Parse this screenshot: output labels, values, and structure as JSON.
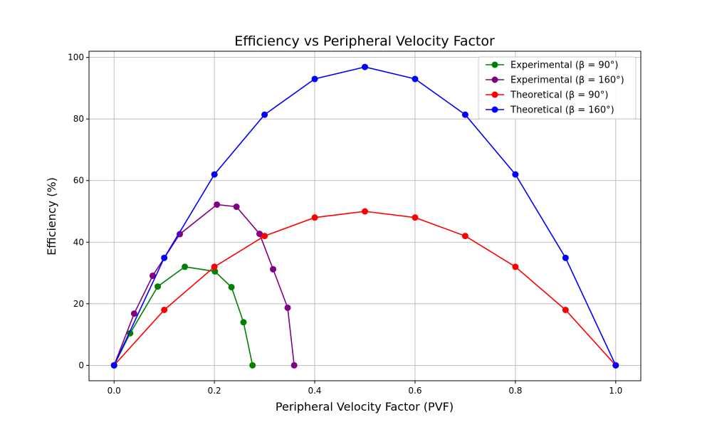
{
  "chart_data": {
    "type": "line",
    "title": "Efficiency vs Peripheral Velocity Factor",
    "xlabel": "Peripheral Velocity Factor (PVF)",
    "ylabel": "Efficiency (%)",
    "xlim": [
      -0.05,
      1.05
    ],
    "ylim": [
      -5,
      102
    ],
    "xticks": [
      0.0,
      0.2,
      0.4,
      0.6,
      0.8,
      1.0
    ],
    "xtick_labels": [
      "0.0",
      "0.2",
      "0.4",
      "0.6",
      "0.8",
      "1.0"
    ],
    "yticks": [
      0,
      20,
      40,
      60,
      80,
      100
    ],
    "ytick_labels": [
      "0",
      "20",
      "40",
      "60",
      "80",
      "100"
    ],
    "grid": true,
    "legend_position": "top-right",
    "series": [
      {
        "name": "Experimental (β = 90°)",
        "color": "#008000",
        "x": [
          0.0,
          0.032,
          0.087,
          0.141,
          0.201,
          0.234,
          0.258,
          0.276
        ],
        "y": [
          0.0,
          10.4,
          25.6,
          32.0,
          30.5,
          25.4,
          14.0,
          0.0
        ]
      },
      {
        "name": "Experimental (β = 160°)",
        "color": "#800080",
        "x": [
          0.0,
          0.04,
          0.077,
          0.131,
          0.205,
          0.244,
          0.29,
          0.317,
          0.346,
          0.359
        ],
        "y": [
          0.0,
          16.8,
          29.1,
          42.6,
          52.2,
          51.5,
          42.7,
          31.2,
          18.7,
          0.0
        ]
      },
      {
        "name": "Theoretical (β = 90°)",
        "color": "#ff0000",
        "x": [
          0.0,
          0.1,
          0.2,
          0.3,
          0.4,
          0.5,
          0.6,
          0.7,
          0.8,
          0.9,
          1.0
        ],
        "y": [
          0.0,
          18.0,
          32.0,
          42.0,
          48.0,
          50.0,
          48.0,
          42.0,
          32.0,
          18.0,
          0.0
        ]
      },
      {
        "name": "Theoretical (β = 160°)",
        "color": "#0000ff",
        "x": [
          0.0,
          0.1,
          0.2,
          0.3,
          0.4,
          0.5,
          0.6,
          0.7,
          0.8,
          0.9,
          1.0
        ],
        "y": [
          0.0,
          34.9,
          62.0,
          81.4,
          93.0,
          96.9,
          93.0,
          81.4,
          62.0,
          34.9,
          0.0
        ]
      }
    ]
  }
}
